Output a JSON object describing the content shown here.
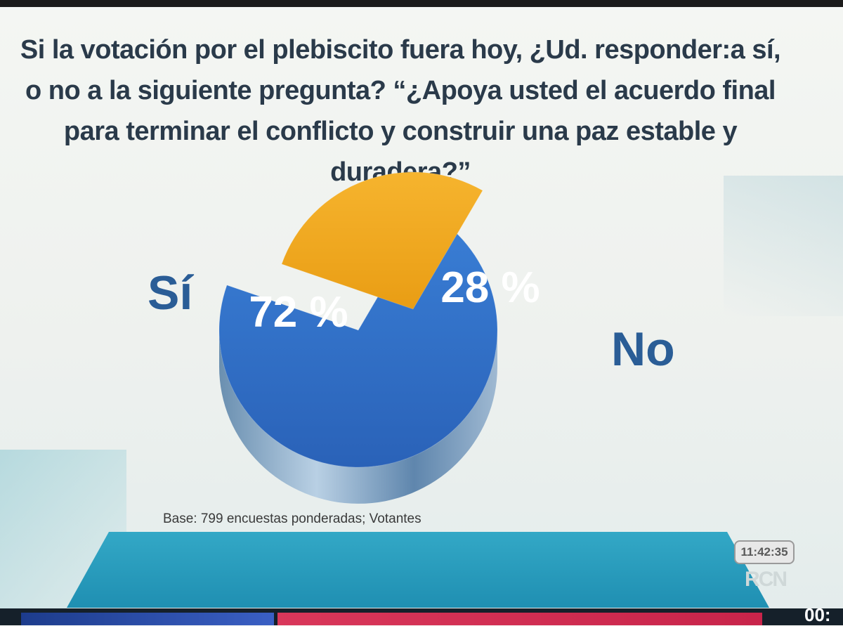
{
  "question": {
    "line1": "Si la votación por el plebiscito fuera hoy, ¿Ud. responder:a sí,",
    "line2": "o no a la siguiente pregunta? “¿Apoya usted el acuerdo final",
    "line3": "para terminar el conflicto y construir una paz estable y duradera?”"
  },
  "chart_data": {
    "type": "pie",
    "title": "",
    "slices": [
      {
        "label": "Sí",
        "value": 72,
        "value_label": "72 %",
        "color": "#2f6fc8"
      },
      {
        "label": "No",
        "value": 28,
        "value_label": "28 %",
        "color": "#f0a620"
      }
    ],
    "start_angle_deg": -60,
    "style": "3d-exploded",
    "legend": "none"
  },
  "footer": {
    "base_note": "Base: 799 encuestas ponderadas; Votantes",
    "clock": "11:42:35",
    "logo": "RCN",
    "corner_text": "00:"
  }
}
